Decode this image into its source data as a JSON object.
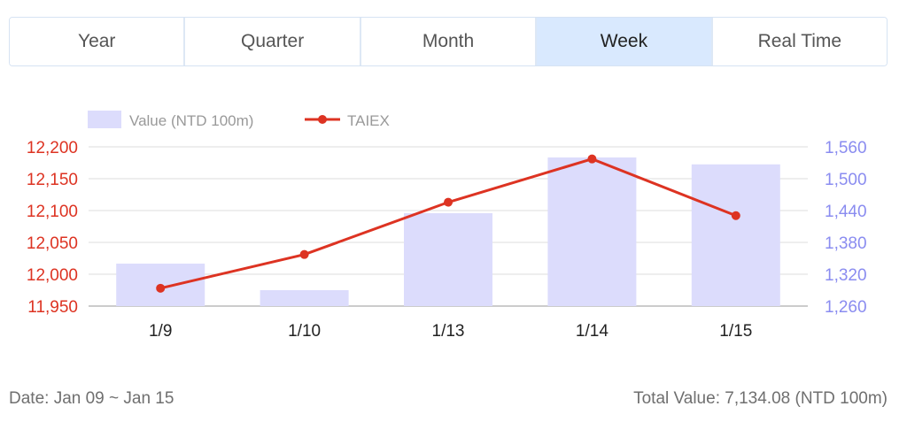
{
  "tabs": [
    {
      "label": "Year",
      "active": false
    },
    {
      "label": "Quarter",
      "active": false
    },
    {
      "label": "Month",
      "active": false
    },
    {
      "label": "Week",
      "active": true
    },
    {
      "label": "Real Time",
      "active": false
    }
  ],
  "footer": {
    "date_range": "Date: Jan 09 ~ Jan 15",
    "total_value": "Total Value: 7,134.08 (NTD 100m)"
  },
  "colors": {
    "line": "#dd3322",
    "bar": "#dcdcfc",
    "right_axis_text": "#8a8cf0",
    "left_axis_text": "#dd3322",
    "grid": "#dddddd"
  },
  "chart_data": {
    "type": "bar",
    "categories": [
      "1/9",
      "1/10",
      "1/13",
      "1/14",
      "1/15"
    ],
    "series": [
      {
        "name": "Value (NTD 100m)",
        "type": "bar",
        "axis": "right",
        "values": [
          1340,
          1290,
          1435,
          1540,
          1527
        ]
      },
      {
        "name": "TAIEX",
        "type": "line",
        "axis": "left",
        "values": [
          11978,
          12031,
          12113,
          12181,
          12092
        ]
      }
    ],
    "left_axis": {
      "ticks": [
        "11,950",
        "12,000",
        "12,050",
        "12,100",
        "12,150",
        "12,200"
      ],
      "range": [
        11950,
        12200
      ]
    },
    "right_axis": {
      "ticks": [
        "1,260",
        "1,320",
        "1,380",
        "1,440",
        "1,500",
        "1,560"
      ],
      "range": [
        1260,
        1560
      ]
    },
    "legend_position": "top-left",
    "grid": true
  }
}
